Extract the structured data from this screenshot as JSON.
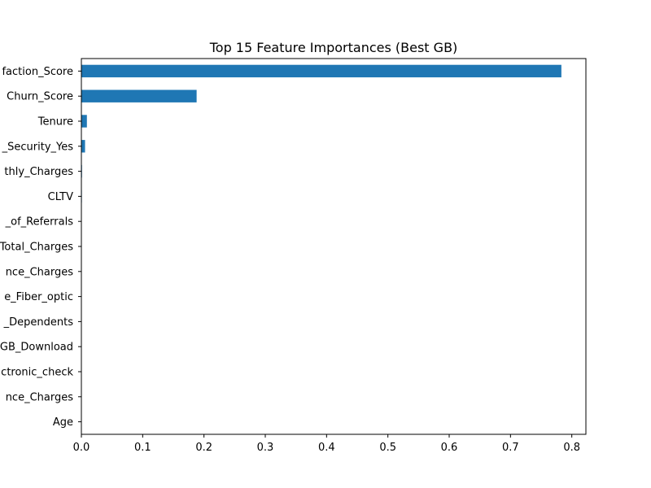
{
  "chart_data": {
    "type": "bar",
    "orientation": "horizontal",
    "title": "Top 15 Feature Importances (Best GB)",
    "xlabel": "",
    "ylabel": "",
    "xlim": [
      0,
      0.823
    ],
    "xticks": [
      0.0,
      0.1,
      0.2,
      0.3,
      0.4,
      0.5,
      0.6,
      0.7,
      0.8
    ],
    "xtick_labels": [
      "0.0",
      "0.1",
      "0.2",
      "0.3",
      "0.4",
      "0.5",
      "0.6",
      "0.7",
      "0.8"
    ],
    "grid": false,
    "bar_color": "#1f77b4",
    "categories": [
      "faction_Score",
      "Churn_Score",
      "Tenure",
      "_Security_Yes",
      "thly_Charges",
      "CLTV",
      "_of_Referrals",
      "Total_Charges",
      "nce_Charges",
      "e_Fiber_optic",
      "_Dependents",
      "GB_Download",
      "ctronic_check",
      "nce_Charges",
      "Age"
    ],
    "values": [
      0.783,
      0.188,
      0.009,
      0.006,
      0.001,
      0.0008,
      0.0006,
      0.0005,
      0.0004,
      0.0003,
      0.0003,
      0.0002,
      0.0002,
      0.0001,
      0.0001
    ]
  }
}
